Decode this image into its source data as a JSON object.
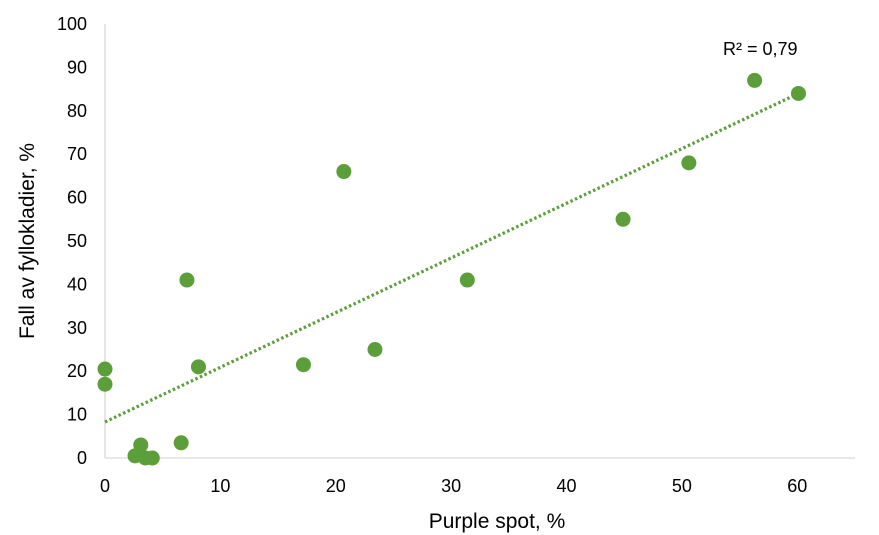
{
  "chart_data": {
    "type": "scatter",
    "xlabel": "Purple spot, %",
    "ylabel": "Fall av fyllokladier, %",
    "xlim": [
      0,
      65
    ],
    "ylim": [
      0,
      100
    ],
    "x_ticks": [
      0,
      10,
      20,
      30,
      40,
      50,
      60
    ],
    "y_ticks": [
      0,
      10,
      20,
      30,
      40,
      50,
      60,
      70,
      80,
      90,
      100
    ],
    "grid": false,
    "series": [
      {
        "points": [
          {
            "x": 0,
            "y": 20.5
          },
          {
            "x": 0,
            "y": 17
          },
          {
            "x": 2.6,
            "y": 0.5
          },
          {
            "x": 3.1,
            "y": 3
          },
          {
            "x": 3.5,
            "y": 0
          },
          {
            "x": 4.1,
            "y": 0
          },
          {
            "x": 6.6,
            "y": 3.5
          },
          {
            "x": 7.1,
            "y": 41
          },
          {
            "x": 8.1,
            "y": 21
          },
          {
            "x": 17.2,
            "y": 21.5
          },
          {
            "x": 20.7,
            "y": 66
          },
          {
            "x": 23.4,
            "y": 25
          },
          {
            "x": 31.4,
            "y": 41
          },
          {
            "x": 44.9,
            "y": 55
          },
          {
            "x": 50.6,
            "y": 68
          },
          {
            "x": 56.3,
            "y": 87
          },
          {
            "x": 60.1,
            "y": 84
          }
        ]
      }
    ],
    "trendline": {
      "style": "dotted",
      "x_start": 0,
      "y_start": 8.3,
      "x_end": 60.1,
      "y_end": 84
    },
    "annotation": "R² = 0,79",
    "colors": {
      "marker": "#5b9e3a",
      "trendline": "#5b9e3a",
      "axis": "#d9d9d9"
    }
  }
}
